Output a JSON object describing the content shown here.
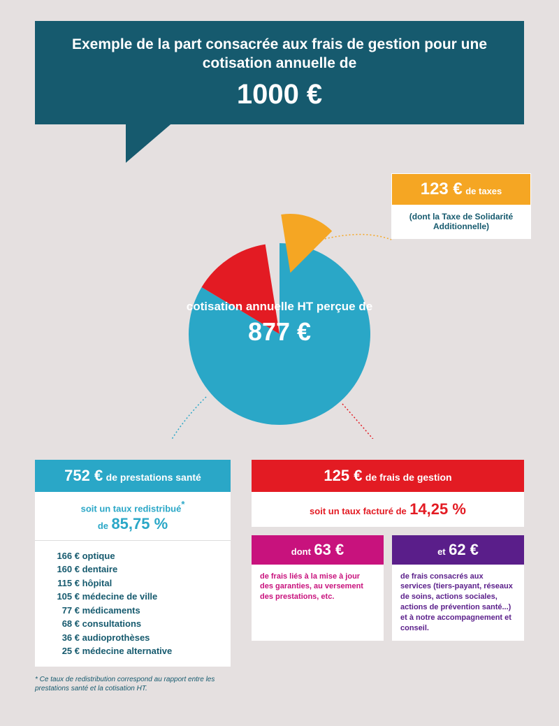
{
  "header": {
    "line1": "Exemple de la part consacrée aux frais de gestion pour une cotisation annuelle de",
    "amount": "1000 €"
  },
  "colors": {
    "darkTeal": "#165a6e",
    "cyan": "#2aa7c7",
    "orange": "#f5a623",
    "red": "#e31b23",
    "pink": "#c8127d",
    "purple": "#5a1e8a",
    "background": "#e5e0e0"
  },
  "pie": {
    "center_label_text": "cotisation annuelle HT perçue de",
    "center_label_value": "877 €",
    "radius": 130,
    "slices": [
      {
        "name": "prestations",
        "value": 752,
        "color": "#2aa7c7",
        "startDeg": 0,
        "endDeg": 301
      },
      {
        "name": "gestion",
        "value": 125,
        "color": "#e31b23",
        "startDeg": 301,
        "endDeg": 351
      },
      {
        "name": "taxes",
        "value": 123,
        "color": "#f5a623",
        "startDeg": 351,
        "endDeg": 405,
        "detached": true
      }
    ]
  },
  "tax_box": {
    "amount": "123 €",
    "label": "de taxes",
    "body": "(dont la Taxe de Solidarité Additionnelle)"
  },
  "prestations": {
    "amount": "752 €",
    "label": "de prestations santé",
    "rate_prefix": "soit un taux redistribué",
    "rate_asterisk": "*",
    "rate_prefix2": "de",
    "rate_value": "85,75 %",
    "items": [
      {
        "amount": "166 €",
        "label": "optique"
      },
      {
        "amount": "160 €",
        "label": "dentaire"
      },
      {
        "amount": "115 €",
        "label": "hôpital"
      },
      {
        "amount": "105 €",
        "label": "médecine de ville"
      },
      {
        "amount": "77 €",
        "label": "médicaments"
      },
      {
        "amount": "68 €",
        "label": "consultations"
      },
      {
        "amount": "36 €",
        "label": "audioprothèses"
      },
      {
        "amount": "25 €",
        "label": "médecine alternative"
      }
    ]
  },
  "footnote": "* Ce taux de redistribution correspond au rapport entre les prestations santé et la cotisation HT.",
  "gestion": {
    "amount": "125 €",
    "label": "de frais de gestion",
    "rate_prefix": "soit un taux facturé de",
    "rate_value": "14,25 %"
  },
  "split": {
    "left": {
      "prefix": "dont",
      "amount": "63 €",
      "body": "de frais liés à la mise à jour des garanties, au versement des prestations, etc."
    },
    "right": {
      "prefix": "et",
      "amount": "62 €",
      "body": "de frais consacrés aux services (tiers-payant, réseaux de soins, actions sociales, actions de prévention santé...) et à notre accompagnement et conseil."
    }
  }
}
